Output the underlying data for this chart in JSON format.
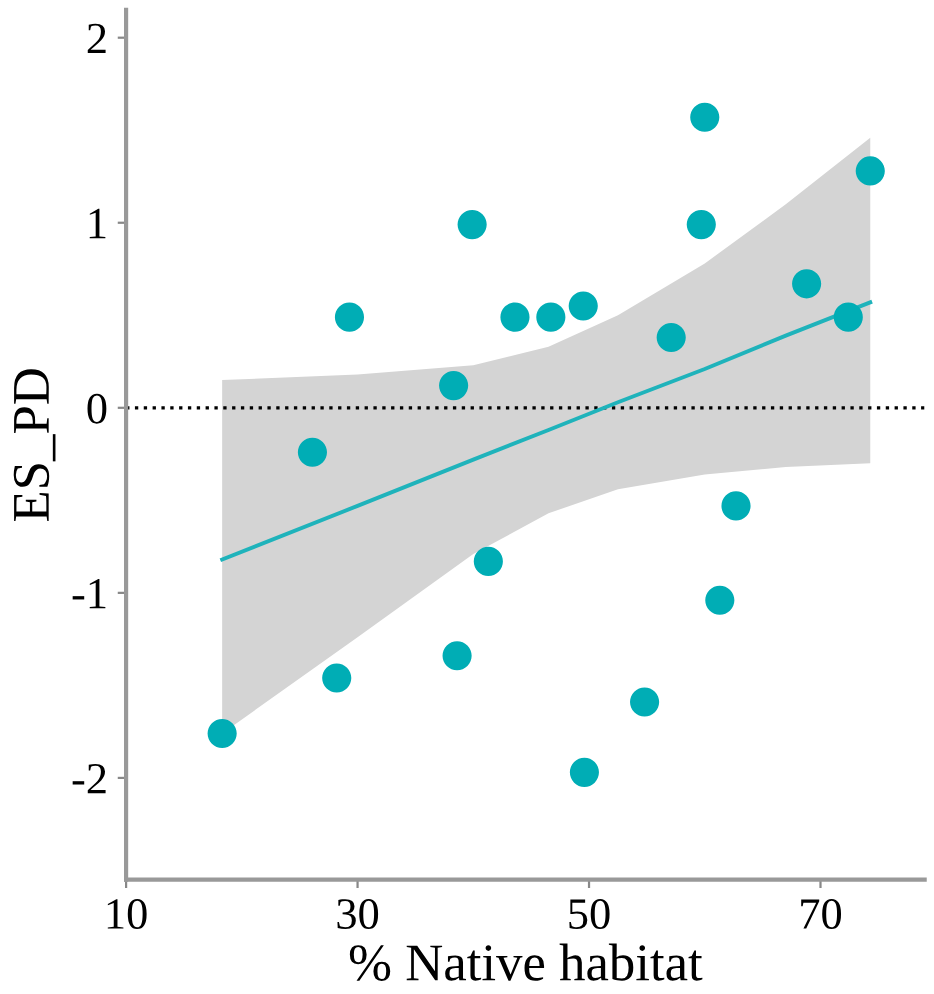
{
  "chart_data": {
    "type": "scatter",
    "xlabel": "% Native habitat",
    "ylabel": "ES_PD",
    "xlim": [
      10,
      79
    ],
    "xticks": [
      10,
      30,
      50,
      70
    ],
    "ylim": [
      -2.55,
      2.15
    ],
    "yticks": [
      {
        "value": -2,
        "label": "-2"
      },
      {
        "value": -1,
        "label": "-1"
      },
      0,
      1,
      2
    ],
    "grid": false,
    "legend": false,
    "series": [
      {
        "marker": "circle",
        "color": "#00adb5",
        "x": [
          18.3,
          26.1,
          28.2,
          29.3,
          38.3,
          38.6,
          39.9,
          41.3,
          43.6,
          46.7,
          49.5,
          49.6,
          54.8,
          57.1,
          59.7,
          60.0,
          61.3,
          62.7,
          68.8,
          72.4,
          74.3
        ],
        "values": [
          -1.76,
          -0.24,
          -1.46,
          0.49,
          0.12,
          -1.34,
          0.99,
          -0.83,
          0.49,
          0.49,
          0.55,
          -1.97,
          -1.59,
          0.38,
          0.99,
          1.57,
          -1.04,
          -0.53,
          0.67,
          0.49,
          1.28
        ]
      },
      {
        "type": "line",
        "marker": "none",
        "color": "#1fb3bb",
        "x": [
          18.3,
          30,
          40,
          46.5,
          52.5,
          60,
          67,
          74.3
        ],
        "values": [
          -0.82,
          -0.53,
          -0.28,
          -0.12,
          0.03,
          0.21,
          0.39,
          0.57
        ],
        "lower": [
          -1.76,
          -1.24,
          -0.79,
          -0.57,
          -0.44,
          -0.36,
          -0.32,
          -0.3
        ],
        "upper": [
          0.15,
          0.18,
          0.23,
          0.33,
          0.5,
          0.78,
          1.1,
          1.46
        ]
      }
    ],
    "ref_lines": [
      {
        "axis": "y",
        "value": 0,
        "color": "#000000",
        "line_style": "dotted"
      }
    ]
  }
}
